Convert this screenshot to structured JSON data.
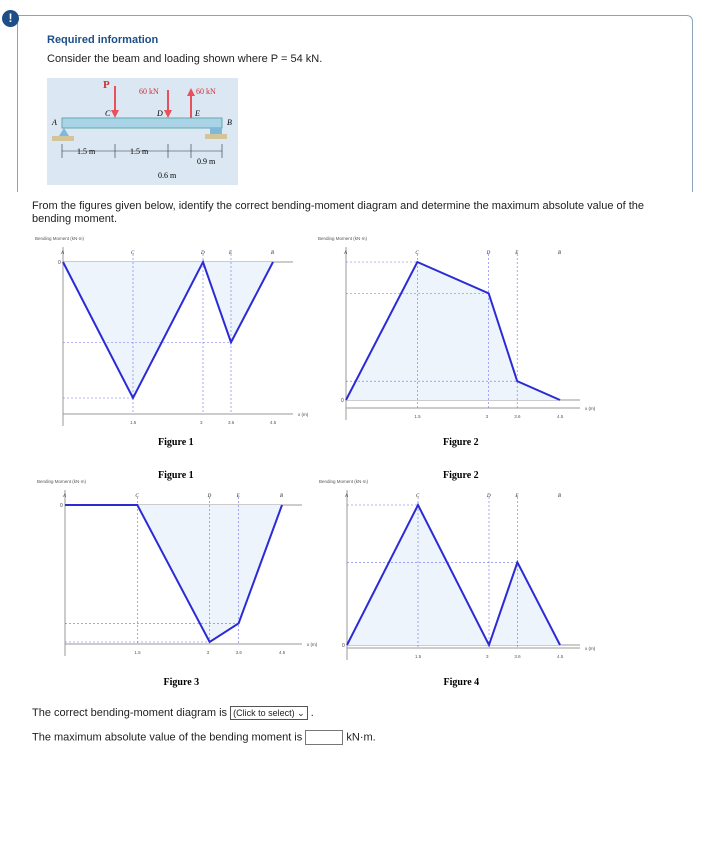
{
  "header": {
    "alert_icon": "exclamation-icon",
    "title": "Required information",
    "prompt": "Consider the beam and loading shown where P = 54 kN."
  },
  "beam_figure": {
    "labels": {
      "P": "P",
      "load1": "60 kN",
      "load2": "60 kN",
      "A": "A",
      "B": "B",
      "C": "C",
      "D": "D",
      "E": "E",
      "d1": "1.5 m",
      "d2": "1.5 m",
      "d3": "0.6 m",
      "d4": "0.9 m"
    },
    "colors": {
      "beam": "#a9d3e6",
      "arrow": "#e8505b",
      "bg": "#dbe7f3"
    }
  },
  "question": "From the figures given below, identify the correct bending-moment diagram and determine the maximum absolute value of the bending moment.",
  "chart_data": [
    {
      "type": "line",
      "title": "Figure 1",
      "ylabel": "Bending Moment (kN·m)",
      "xlabel": "x (m)",
      "points": [
        "A",
        "C",
        "D",
        "E",
        "B"
      ],
      "x": [
        0,
        1.5,
        3,
        3.6,
        4.5
      ],
      "y": [
        0,
        -66,
        0,
        -39,
        0
      ],
      "xticks": [
        "1.5",
        "3",
        "3.6",
        "4.5"
      ],
      "zero_label": "0"
    },
    {
      "type": "line",
      "title": "Figure 2",
      "ylabel": "Bending Moment (kN·m)",
      "xlabel": "x (m)",
      "points": [
        "A",
        "C",
        "D",
        "E",
        "B"
      ],
      "x": [
        0,
        1.5,
        3,
        3.6,
        4.5
      ],
      "y": [
        0,
        66,
        51,
        9,
        0
      ],
      "xticks": [
        "1.5",
        "3",
        "3.6",
        "4.5"
      ],
      "zero_label": "0"
    },
    {
      "type": "line",
      "title": "Figure 3",
      "ylabel": "Bending Moment (kN·m)",
      "xlabel": "x (m)",
      "points": [
        "A",
        "C",
        "D",
        "E",
        "B"
      ],
      "x": [
        0,
        1.5,
        3,
        3.6,
        4.5
      ],
      "y": [
        0,
        0,
        -66,
        -57,
        0
      ],
      "xticks": [
        "1.5",
        "3",
        "3.6",
        "4.5"
      ],
      "zero_label": "0"
    },
    {
      "type": "line",
      "title": "Figure 4",
      "ylabel": "Bending Moment (kN·m)",
      "xlabel": "x (m)",
      "points": [
        "A",
        "C",
        "D",
        "E",
        "B"
      ],
      "x": [
        0,
        1.5,
        3,
        3.6,
        4.5
      ],
      "y": [
        0,
        66,
        0,
        39,
        0
      ],
      "xticks": [
        "1.5",
        "3",
        "3.6",
        "4.5"
      ],
      "zero_label": "0"
    }
  ],
  "chart_colors": {
    "line": "#2b2bd6",
    "fill": "#eef4fc",
    "guide": "#6f6ff0"
  },
  "answer": {
    "diagram_prefix": "The correct bending-moment diagram is",
    "select_value": "(Click to select)",
    "max_prefix": "The maximum absolute value of the bending moment is",
    "unit": "kN·m."
  }
}
